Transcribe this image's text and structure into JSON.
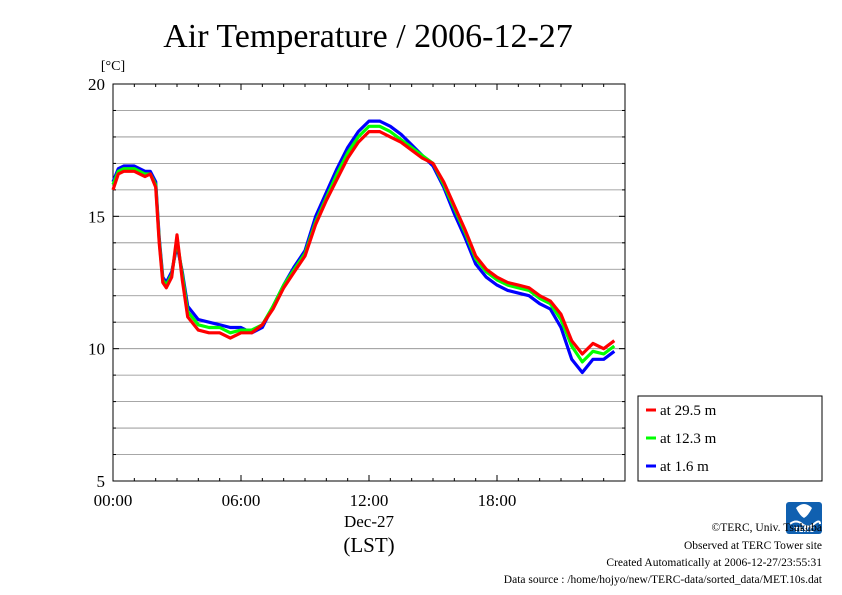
{
  "chart_data": {
    "type": "line",
    "title": "Air Temperature / 2006-12-27",
    "ylabel": "[°C]",
    "xlabel": "(LST)",
    "x_date_label": "Dec-27",
    "ylim": [
      5,
      20
    ],
    "xlim": [
      "00:00",
      "24:00"
    ],
    "y_ticks": [
      "5",
      "10",
      "15",
      "20"
    ],
    "x_ticks": [
      "00:00",
      "06:00",
      "12:00",
      "18:00"
    ],
    "grid": true,
    "legend_position": "bottom-right-outside",
    "series": [
      {
        "name": "at 29.5 m",
        "color": "#ff0000",
        "points": [
          [
            "00:00",
            16.0
          ],
          [
            "00:15",
            16.6
          ],
          [
            "00:30",
            16.7
          ],
          [
            "01:00",
            16.7
          ],
          [
            "01:30",
            16.5
          ],
          [
            "01:45",
            16.6
          ],
          [
            "02:00",
            16.1
          ],
          [
            "02:10",
            14.0
          ],
          [
            "02:20",
            12.5
          ],
          [
            "02:30",
            12.3
          ],
          [
            "02:45",
            12.7
          ],
          [
            "03:00",
            14.3
          ],
          [
            "03:15",
            12.6
          ],
          [
            "03:30",
            11.2
          ],
          [
            "04:00",
            10.7
          ],
          [
            "04:30",
            10.6
          ],
          [
            "05:00",
            10.6
          ],
          [
            "05:30",
            10.4
          ],
          [
            "06:00",
            10.6
          ],
          [
            "06:30",
            10.6
          ],
          [
            "07:00",
            10.9
          ],
          [
            "07:30",
            11.5
          ],
          [
            "08:00",
            12.3
          ],
          [
            "08:30",
            12.9
          ],
          [
            "09:00",
            13.5
          ],
          [
            "09:30",
            14.7
          ],
          [
            "10:00",
            15.6
          ],
          [
            "10:30",
            16.4
          ],
          [
            "11:00",
            17.2
          ],
          [
            "11:30",
            17.8
          ],
          [
            "12:00",
            18.2
          ],
          [
            "12:30",
            18.2
          ],
          [
            "13:00",
            18.0
          ],
          [
            "13:30",
            17.8
          ],
          [
            "14:00",
            17.5
          ],
          [
            "14:30",
            17.2
          ],
          [
            "15:00",
            17.0
          ],
          [
            "15:30",
            16.3
          ],
          [
            "16:00",
            15.4
          ],
          [
            "16:30",
            14.5
          ],
          [
            "17:00",
            13.5
          ],
          [
            "17:30",
            13.0
          ],
          [
            "18:00",
            12.7
          ],
          [
            "18:30",
            12.5
          ],
          [
            "19:00",
            12.4
          ],
          [
            "19:30",
            12.3
          ],
          [
            "20:00",
            12.0
          ],
          [
            "20:30",
            11.8
          ],
          [
            "21:00",
            11.3
          ],
          [
            "21:30",
            10.3
          ],
          [
            "22:00",
            9.8
          ],
          [
            "22:30",
            10.2
          ],
          [
            "23:00",
            10.0
          ],
          [
            "23:30",
            10.3
          ]
        ]
      },
      {
        "name": "at 12.3 m",
        "color": "#00ff00",
        "points": [
          [
            "00:00",
            16.2
          ],
          [
            "00:15",
            16.7
          ],
          [
            "00:30",
            16.8
          ],
          [
            "01:00",
            16.8
          ],
          [
            "01:30",
            16.6
          ],
          [
            "01:45",
            16.6
          ],
          [
            "02:00",
            16.2
          ],
          [
            "02:10",
            14.1
          ],
          [
            "02:20",
            12.6
          ],
          [
            "02:30",
            12.4
          ],
          [
            "02:45",
            12.8
          ],
          [
            "03:00",
            14.1
          ],
          [
            "03:15",
            12.8
          ],
          [
            "03:30",
            11.4
          ],
          [
            "04:00",
            10.9
          ],
          [
            "04:30",
            10.8
          ],
          [
            "05:00",
            10.8
          ],
          [
            "05:30",
            10.6
          ],
          [
            "06:00",
            10.7
          ],
          [
            "06:30",
            10.7
          ],
          [
            "07:00",
            10.9
          ],
          [
            "07:30",
            11.6
          ],
          [
            "08:00",
            12.4
          ],
          [
            "08:30",
            13.0
          ],
          [
            "09:00",
            13.6
          ],
          [
            "09:30",
            14.8
          ],
          [
            "10:00",
            15.7
          ],
          [
            "10:30",
            16.6
          ],
          [
            "11:00",
            17.4
          ],
          [
            "11:30",
            18.0
          ],
          [
            "12:00",
            18.4
          ],
          [
            "12:30",
            18.4
          ],
          [
            "13:00",
            18.2
          ],
          [
            "13:30",
            17.9
          ],
          [
            "14:00",
            17.6
          ],
          [
            "14:30",
            17.3
          ],
          [
            "15:00",
            17.0
          ],
          [
            "15:30",
            16.2
          ],
          [
            "16:00",
            15.3
          ],
          [
            "16:30",
            14.4
          ],
          [
            "17:00",
            13.4
          ],
          [
            "17:30",
            12.9
          ],
          [
            "18:00",
            12.6
          ],
          [
            "18:30",
            12.4
          ],
          [
            "19:00",
            12.3
          ],
          [
            "19:30",
            12.2
          ],
          [
            "20:00",
            11.9
          ],
          [
            "20:30",
            11.7
          ],
          [
            "21:00",
            11.1
          ],
          [
            "21:30",
            10.1
          ],
          [
            "22:00",
            9.5
          ],
          [
            "22:30",
            9.9
          ],
          [
            "23:00",
            9.8
          ],
          [
            "23:30",
            10.1
          ]
        ]
      },
      {
        "name": "at 1.6 m",
        "color": "#0000ff",
        "points": [
          [
            "00:00",
            16.3
          ],
          [
            "00:15",
            16.8
          ],
          [
            "00:30",
            16.9
          ],
          [
            "01:00",
            16.9
          ],
          [
            "01:30",
            16.7
          ],
          [
            "01:45",
            16.7
          ],
          [
            "02:00",
            16.3
          ],
          [
            "02:10",
            14.2
          ],
          [
            "02:20",
            12.7
          ],
          [
            "02:30",
            12.5
          ],
          [
            "02:45",
            12.9
          ],
          [
            "03:00",
            13.9
          ],
          [
            "03:15",
            12.9
          ],
          [
            "03:30",
            11.6
          ],
          [
            "04:00",
            11.1
          ],
          [
            "04:30",
            11.0
          ],
          [
            "05:00",
            10.9
          ],
          [
            "05:30",
            10.8
          ],
          [
            "06:00",
            10.8
          ],
          [
            "06:30",
            10.6
          ],
          [
            "07:00",
            10.8
          ],
          [
            "07:30",
            11.6
          ],
          [
            "08:00",
            12.4
          ],
          [
            "08:30",
            13.1
          ],
          [
            "09:00",
            13.7
          ],
          [
            "09:30",
            15.0
          ],
          [
            "10:00",
            15.9
          ],
          [
            "10:30",
            16.8
          ],
          [
            "11:00",
            17.6
          ],
          [
            "11:30",
            18.2
          ],
          [
            "12:00",
            18.6
          ],
          [
            "12:30",
            18.6
          ],
          [
            "13:00",
            18.4
          ],
          [
            "13:30",
            18.1
          ],
          [
            "14:00",
            17.7
          ],
          [
            "14:30",
            17.3
          ],
          [
            "15:00",
            16.9
          ],
          [
            "15:30",
            16.1
          ],
          [
            "16:00",
            15.1
          ],
          [
            "16:30",
            14.2
          ],
          [
            "17:00",
            13.2
          ],
          [
            "17:30",
            12.7
          ],
          [
            "18:00",
            12.4
          ],
          [
            "18:30",
            12.2
          ],
          [
            "19:00",
            12.1
          ],
          [
            "19:30",
            12.0
          ],
          [
            "20:00",
            11.7
          ],
          [
            "20:30",
            11.5
          ],
          [
            "21:00",
            10.8
          ],
          [
            "21:30",
            9.6
          ],
          [
            "22:00",
            9.1
          ],
          [
            "22:30",
            9.6
          ],
          [
            "23:00",
            9.6
          ],
          [
            "23:30",
            9.9
          ]
        ]
      }
    ]
  },
  "credits": {
    "copyright": "©TERC, Univ. Tsukuba",
    "observed": "Observed at TERC Tower site",
    "created": "Created Automatically at 2006-12-27/23:55:31",
    "source": "Data source : /home/hojyo/new/TERC-data/sorted_data/MET.10s.dat"
  },
  "logo": {
    "name": "terc-logo-icon",
    "text": "TERC",
    "color": "#1060b0"
  }
}
